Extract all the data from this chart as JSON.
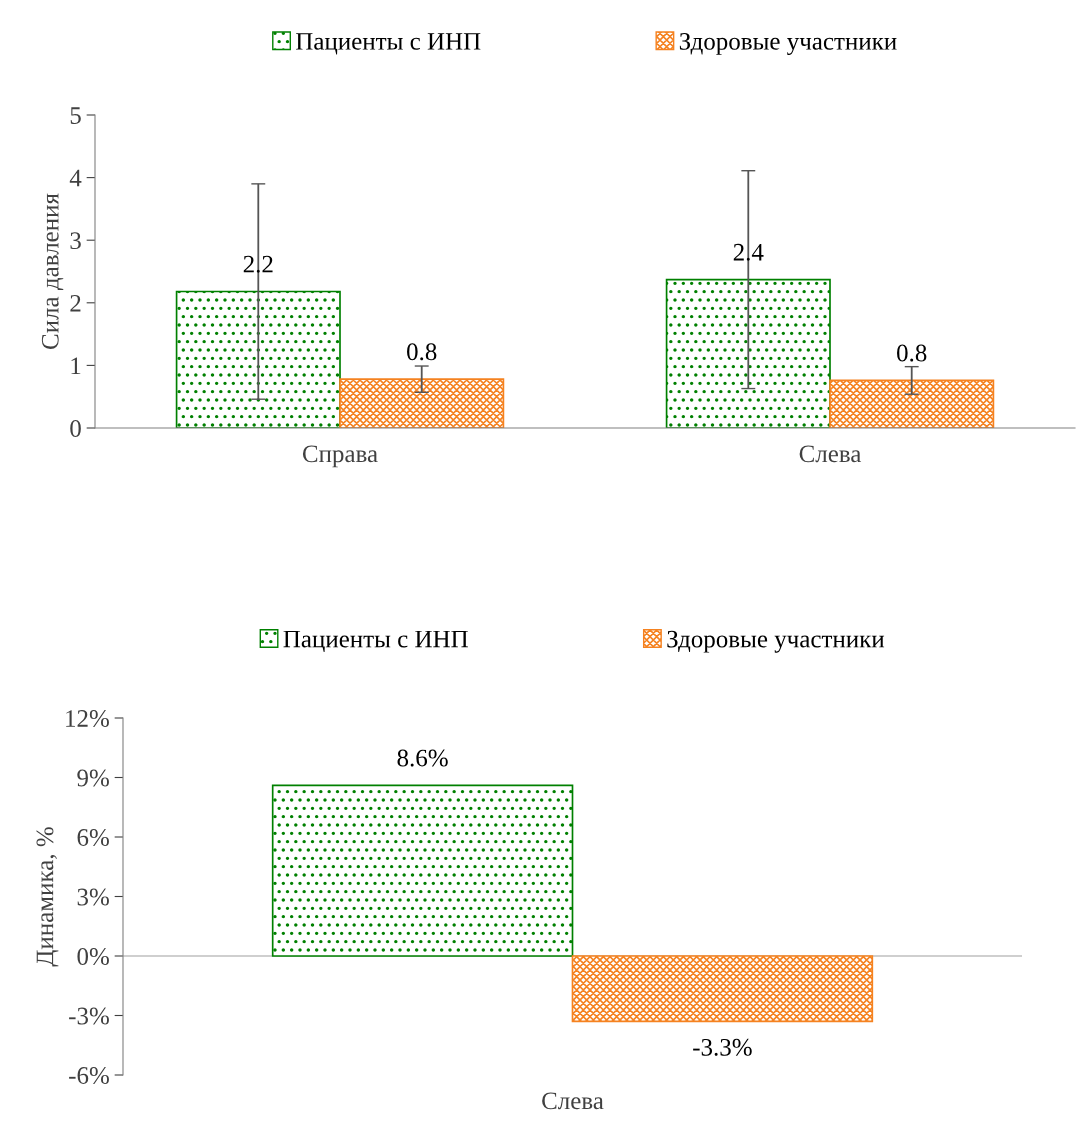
{
  "chart_data": [
    {
      "type": "bar",
      "ylabel": "Сила давления",
      "categories": [
        "Справа",
        "Слева"
      ],
      "ylim": [
        0,
        5
      ],
      "yticks": [
        0,
        1,
        2,
        3,
        4,
        5
      ],
      "grid": false,
      "legend": "top",
      "series": [
        {
          "name": "Пациенты с ИНП",
          "color": "#008000",
          "values": [
            2.18,
            2.37
          ],
          "errors": [
            1.72,
            1.74
          ],
          "value_labels": [
            "2.2",
            "2.4"
          ]
        },
        {
          "name": "Здоровые участники",
          "color": "#f58220",
          "values": [
            0.78,
            0.76
          ],
          "errors": [
            0.21,
            0.22
          ],
          "value_labels": [
            "0.8",
            "0.8"
          ]
        }
      ]
    },
    {
      "type": "bar",
      "ylabel": "Динамика, %",
      "categories": [
        "Слева"
      ],
      "ylim": [
        -6,
        12
      ],
      "ref_lines": [
        {
          "axis": "y",
          "value": 0,
          "color": "#bfbfbf"
        }
      ],
      "yticks": [
        {
          "value": -6,
          "label": "-6%"
        },
        {
          "value": -3,
          "label": "-3%"
        },
        {
          "value": 0,
          "label": "0%"
        },
        {
          "value": 3,
          "label": "3%"
        },
        {
          "value": 6,
          "label": "6%"
        },
        {
          "value": 9,
          "label": "9%"
        },
        {
          "value": 12,
          "label": "12%"
        }
      ],
      "grid": false,
      "legend": "top",
      "series": [
        {
          "name": "Пациенты с ИНП",
          "color": "#008000",
          "values": [
            8.6
          ],
          "value_labels": [
            "8.6%"
          ]
        },
        {
          "name": "Здоровые участники",
          "color": "#f58220",
          "values": [
            -3.3
          ],
          "value_labels": [
            "-3.3%"
          ]
        }
      ]
    }
  ]
}
